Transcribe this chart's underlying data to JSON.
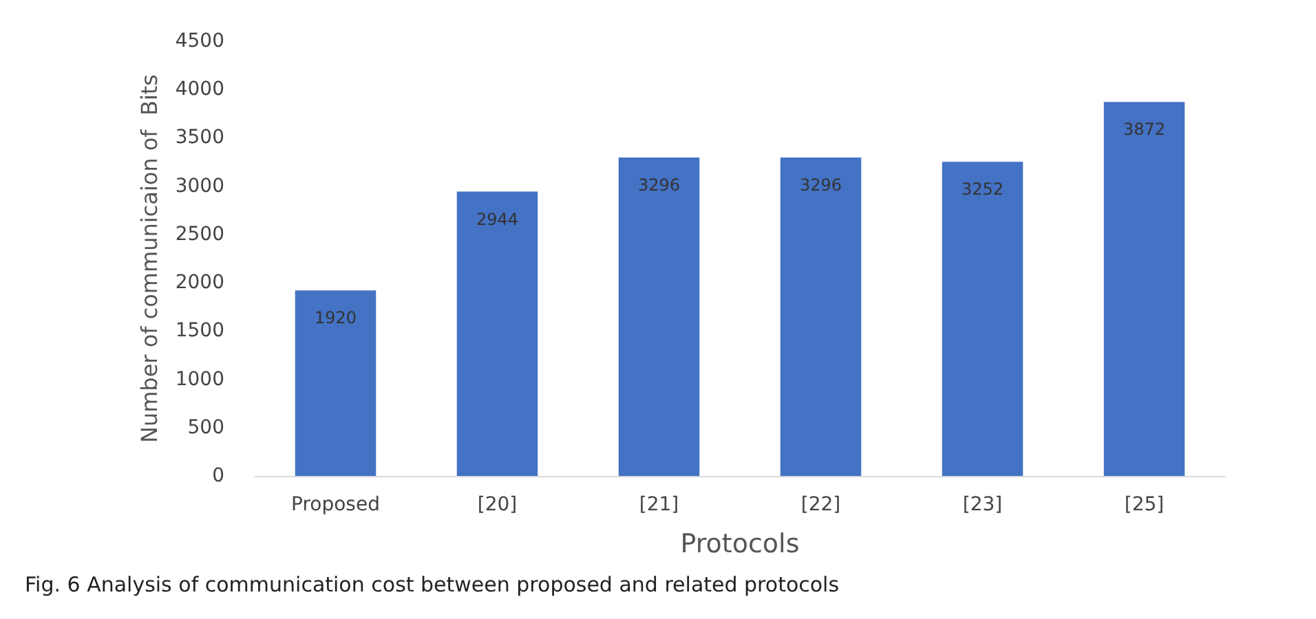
{
  "chart_data": {
    "type": "bar",
    "categories": [
      "Proposed",
      "[20]",
      "[21]",
      "[22]",
      "[23]",
      "[25]"
    ],
    "values": [
      1920,
      2944,
      3296,
      3296,
      3252,
      3872
    ],
    "color": "#4472c4",
    "xlabel": "Protocols",
    "ylabel": "Number of communicaion of  Bits",
    "ylim": [
      0,
      4500
    ],
    "yticks": [
      0,
      500,
      1000,
      1500,
      2000,
      2500,
      3000,
      3500,
      4000,
      4500
    ],
    "grid": false,
    "data_labels": true,
    "annotations": [
      "Fig. 6  Analysis of communication cost between proposed and related protocols"
    ]
  }
}
